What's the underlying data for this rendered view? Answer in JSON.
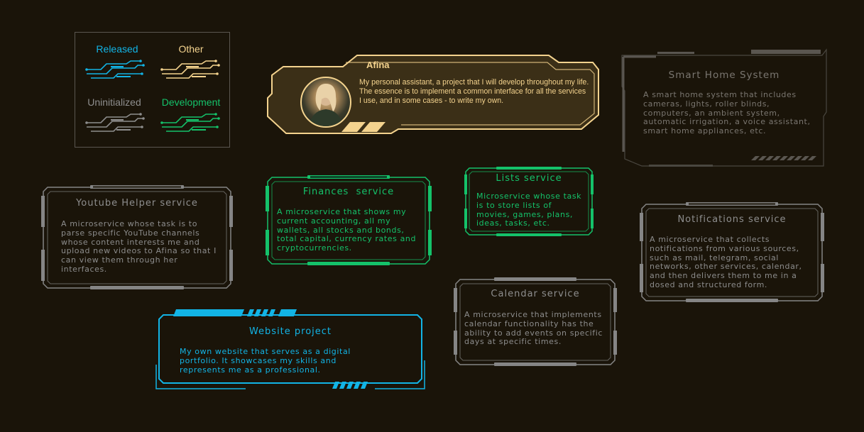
{
  "colors": {
    "background": "#1a1409",
    "released": "#12b4e6",
    "other": "#f4d38e",
    "uninitialized": "#8e8e8e",
    "development": "#14c26a"
  },
  "legend": {
    "released": "Released",
    "other": "Other",
    "uninitialized": "Uninitialized",
    "development": "Development"
  },
  "afina": {
    "name": "Afina",
    "description": "My personal assistant, a project that I will develop throughout my life. The essence is to implement a common interface for all the services I use, and in some cases - to write my own.",
    "avatar_icon": "avatar-icon"
  },
  "smart_home": {
    "title": "Smart Home System",
    "description": "A smart home system that includes cameras, lights, roller blinds, computers, an ambient system, automatic irrigation, a voice assistant, smart home appliances, etc."
  },
  "youtube_helper": {
    "title": "Youtube Helper service",
    "description": "A microservice whose task is to parse specific YouTube channels whose content interests me and upload new videos to Afina so that I can view them through her interfaces."
  },
  "finances": {
    "title": "Finances  service",
    "description": "A microservice that shows my current accounting, all my wallets, all stocks and bonds, total capital, currency rates and cryptocurrencies."
  },
  "lists": {
    "title": "Lists service",
    "description": "Microservice whose task is to store lists of movies, games, plans, ideas, tasks, etc."
  },
  "notifications": {
    "title": "Notifications service",
    "description": "A microservice that collects notifications from various sources, such as mail, telegram, social networks, other services, calendar, and then delivers them to me in a dosed and structured form."
  },
  "calendar": {
    "title": "Calendar service",
    "description": "A microservice that implements calendar functionality has the ability to add events on specific days at specific times."
  },
  "website": {
    "title": "Website project",
    "description": "My own website that serves as a digital portfolio. It showcases my skills and represents me as a professional."
  }
}
